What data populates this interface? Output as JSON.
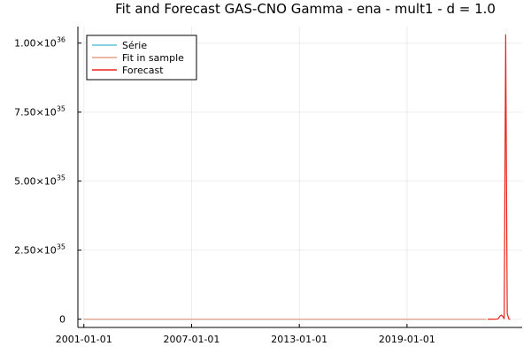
{
  "chart_data": {
    "type": "line",
    "title": "Fit and Forecast GAS-CNO Gamma - ena - mult1 - d = 1.0",
    "xlabel": "",
    "ylabel": "",
    "x_ticks": [
      "2001-01-01",
      "2007-01-01",
      "2013-01-01",
      "2019-01-01"
    ],
    "x_range": [
      "2000-09-01",
      "2025-06-01"
    ],
    "y_ticks": [
      {
        "value": 0,
        "mantissa": "0",
        "exponent": ""
      },
      {
        "value": 2.5e+35,
        "mantissa": "2.50×10",
        "exponent": "35"
      },
      {
        "value": 5e+35,
        "mantissa": "5.00×10",
        "exponent": "35"
      },
      {
        "value": 7.5e+35,
        "mantissa": "7.50×10",
        "exponent": "35"
      },
      {
        "value": 1e+36,
        "mantissa": "1.00×10",
        "exponent": "36"
      }
    ],
    "ylim": [
      -3e+34,
      1.06e+36
    ],
    "grid": true,
    "legend_position": "top-left",
    "series": [
      {
        "name": "Série",
        "color": "#5bc3d8",
        "x": [
          "2001-01-01",
          "2023-06-01"
        ],
        "y": [
          0,
          0
        ]
      },
      {
        "name": "Fit in sample",
        "color": "#e8a08a",
        "x": [
          "2001-01-01",
          "2023-06-01"
        ],
        "y": [
          0,
          0
        ]
      },
      {
        "name": "Forecast",
        "color": "#e8261d",
        "x": [
          "2023-07-01",
          "2023-09-01",
          "2023-11-01",
          "2024-01-01",
          "2024-02-01",
          "2024-03-01",
          "2024-04-01",
          "2024-05-01",
          "2024-06-01",
          "2024-07-01",
          "2024-08-01",
          "2024-09-01",
          "2024-10-01"
        ],
        "y": [
          0,
          0,
          1e+32,
          3e+32,
          2e+33,
          1e+34,
          1.5e+34,
          1e+34,
          2e+33,
          1.03e+36,
          2e+34,
          1e+33,
          0
        ]
      }
    ]
  }
}
